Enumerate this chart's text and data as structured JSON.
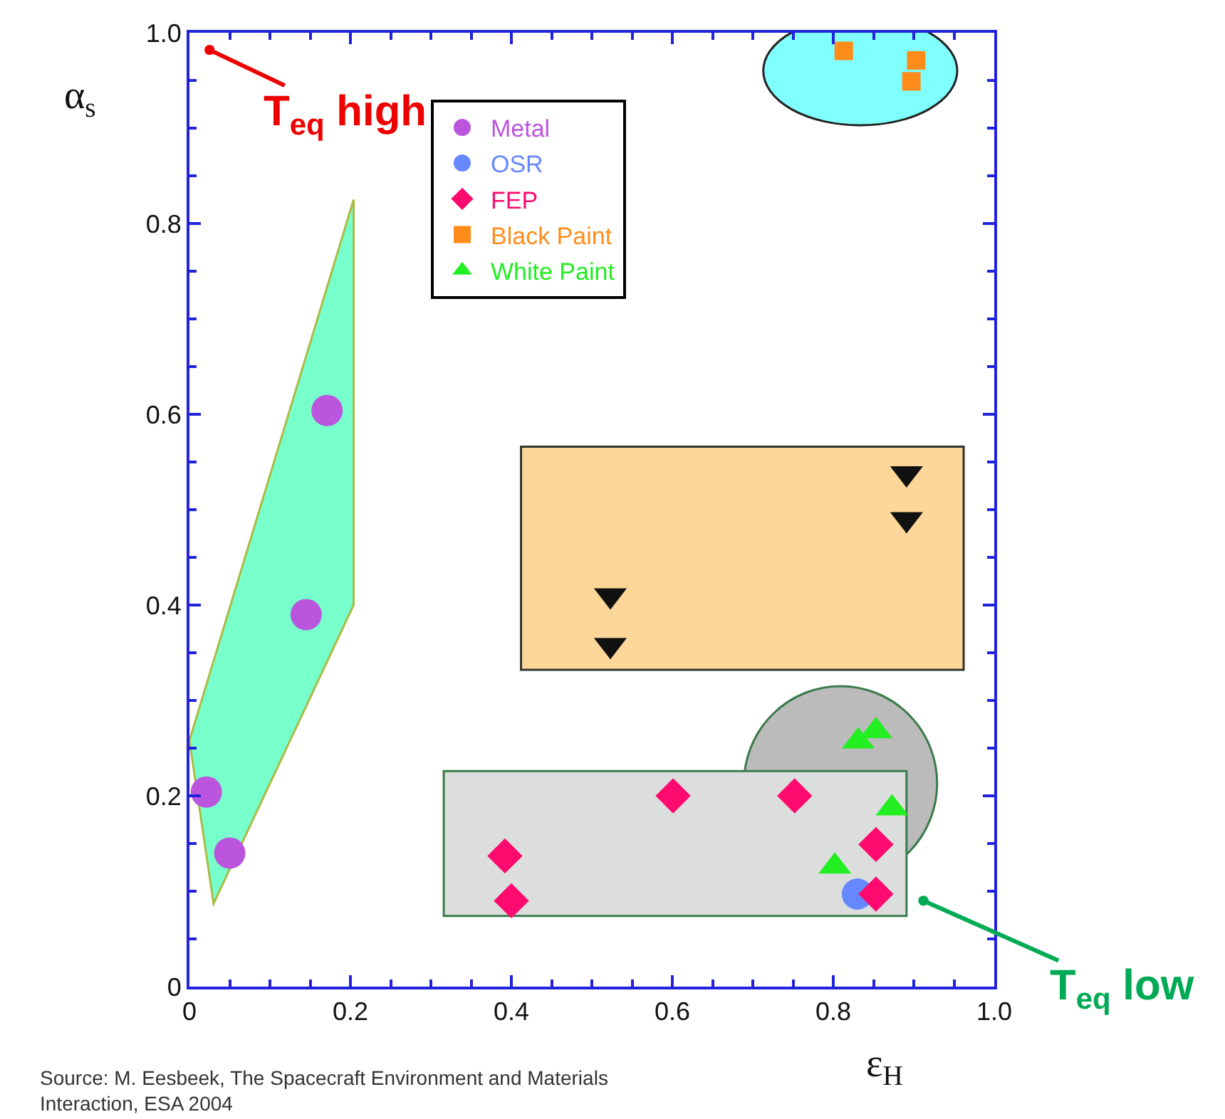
{
  "chart_data": {
    "type": "scatter",
    "xlabel": "ε$_{H}$",
    "ylabel": "α$_{s}$",
    "xlim": [
      0,
      1
    ],
    "ylim": [
      0,
      1
    ],
    "xticks": [
      0,
      0.2,
      0.4,
      0.6,
      0.8,
      {
        "value": 1,
        "label": "1.0"
      }
    ],
    "yticks": [
      0,
      0.2,
      0.4,
      0.6,
      0.8,
      {
        "value": 1,
        "label": "1.0"
      }
    ],
    "grid": false,
    "legend": "top",
    "series": [
      {
        "name": "Metal",
        "color": "#bb55dd",
        "marker": "circle",
        "x": [
          0.021,
          0.05,
          0.145,
          0.171
        ],
        "values": [
          0.204,
          0.14,
          0.39,
          0.604
        ]
      },
      {
        "name": "OSR",
        "color": "#6688ff",
        "marker": "circle",
        "x": [
          0.83
        ],
        "values": [
          0.097
        ]
      },
      {
        "name": "FEP",
        "color": "#ff0a6e",
        "marker": "diamond",
        "x": [
          0.392,
          0.4,
          0.601,
          0.752,
          0.853,
          0.853
        ],
        "values": [
          0.137,
          0.09,
          0.2,
          0.2,
          0.149,
          0.097
        ]
      },
      {
        "color": "#111111",
        "marker": "triangle-down",
        "x": [
          0.891,
          0.891,
          0.523,
          0.523
        ],
        "values": [
          0.538,
          0.49,
          0.41,
          0.358
        ]
      },
      {
        "name": "Black Paint",
        "color": "#ff8c1a",
        "marker": "square",
        "x": [
          0.813,
          0.903,
          0.897
        ],
        "values": [
          0.981,
          0.971,
          0.949
        ]
      },
      {
        "name": "White Paint",
        "color": "#22ee22",
        "marker": "triangle",
        "x": [
          0.831,
          0.853,
          0.873,
          0.802
        ],
        "values": [
          0.257,
          0.268,
          0.187,
          0.126
        ]
      }
    ],
    "annotations": [
      {
        "text": "T$_{eq}$ high",
        "x": 0.025,
        "y": 0.982
      },
      {
        "text": "T$_{eq}$ low",
        "x": 0.912,
        "y": 0.09
      },
      "Source: M. Eesbeek, The Spacecraft Environment and Materials Interaction, ESA 2004"
    ]
  }
}
